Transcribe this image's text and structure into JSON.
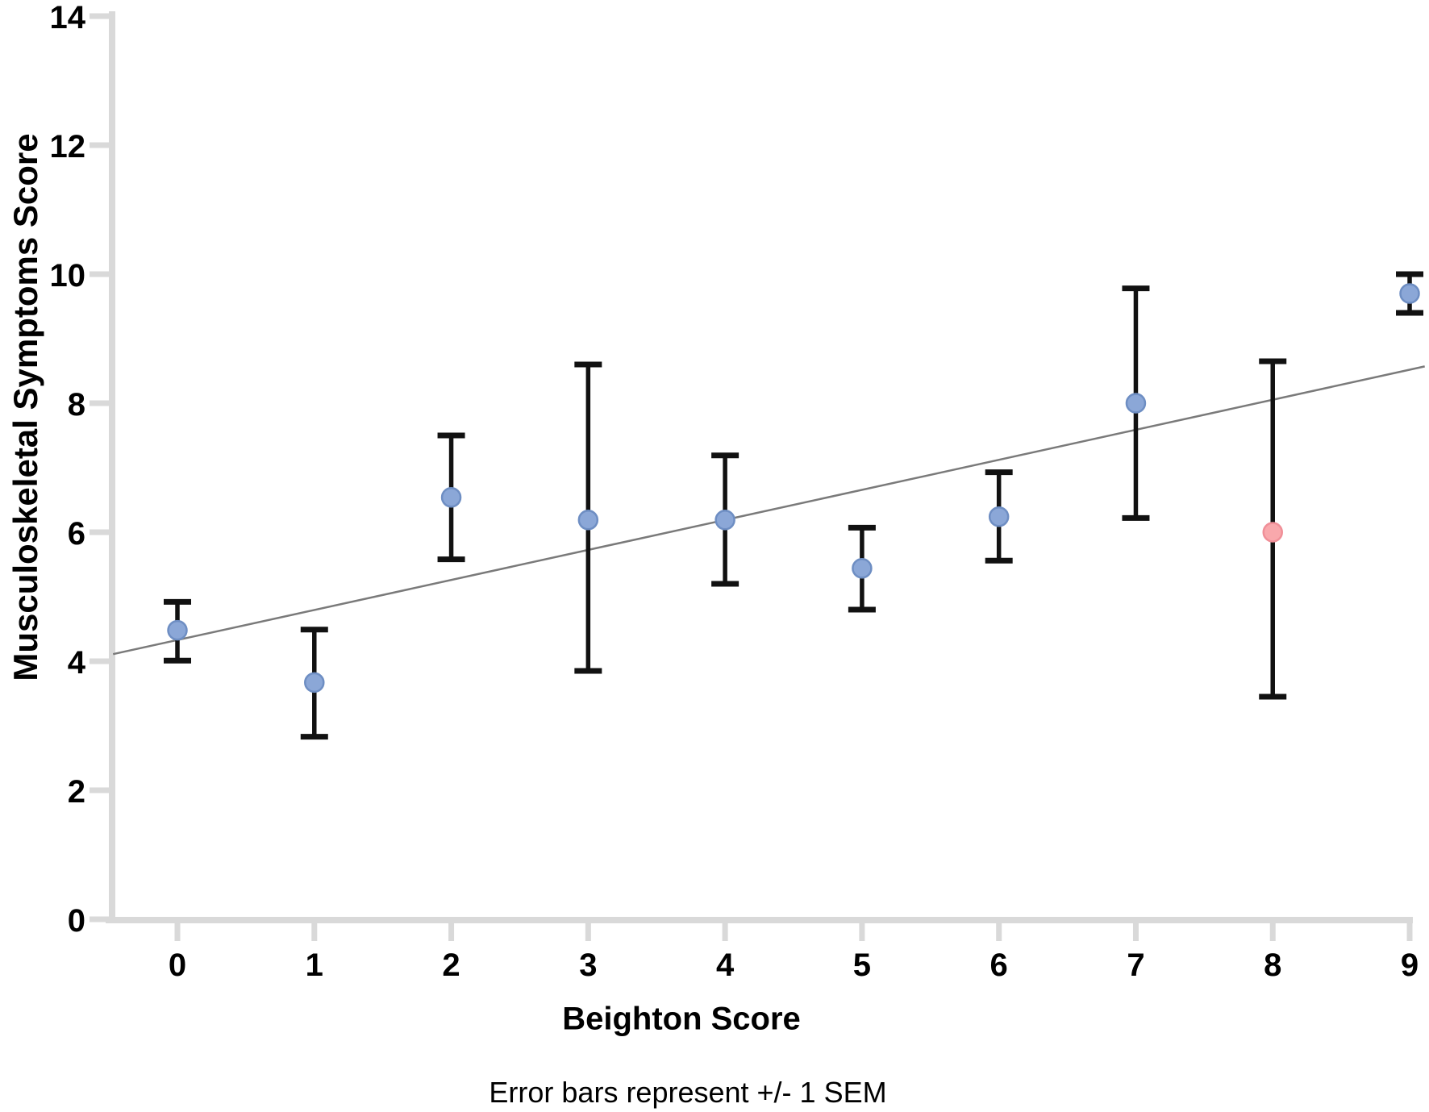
{
  "figure": {
    "y_axis_title": "Musculoskeletal Symptoms Score",
    "x_axis_title": "Beighton Score",
    "caption": "Error bars represent +/- 1 SEM"
  },
  "chart_data": {
    "type": "scatter",
    "title": "",
    "xlabel": "Beighton Score",
    "ylabel": "Musculoskeletal Symptoms Score",
    "caption": "Error bars represent +/- 1 SEM",
    "xlim": [
      -0.5,
      9.15
    ],
    "ylim": [
      0,
      14
    ],
    "x_ticks": [
      0,
      1,
      2,
      3,
      4,
      5,
      6,
      7,
      8,
      9
    ],
    "y_ticks": [
      0,
      2,
      4,
      6,
      8,
      10,
      12,
      14
    ],
    "grid": false,
    "legend": "none",
    "error_bar_meaning": "+/- 1 SEM",
    "series": [
      {
        "name": "mean-musculoskeletal-symptoms-score",
        "marker": "circle",
        "points": [
          {
            "x": 0,
            "y": 4.48,
            "err_low": 4.01,
            "err_high": 4.92,
            "color": "blue"
          },
          {
            "x": 1,
            "y": 3.67,
            "err_low": 2.83,
            "err_high": 4.49,
            "color": "blue"
          },
          {
            "x": 2,
            "y": 6.54,
            "err_low": 5.58,
            "err_high": 7.5,
            "color": "blue"
          },
          {
            "x": 3,
            "y": 6.19,
            "err_low": 3.85,
            "err_high": 8.6,
            "color": "blue"
          },
          {
            "x": 4,
            "y": 6.19,
            "err_low": 5.2,
            "err_high": 7.19,
            "color": "blue"
          },
          {
            "x": 5,
            "y": 5.44,
            "err_low": 4.8,
            "err_high": 6.07,
            "color": "blue"
          },
          {
            "x": 6,
            "y": 6.24,
            "err_low": 5.56,
            "err_high": 6.93,
            "color": "blue"
          },
          {
            "x": 7,
            "y": 8.0,
            "err_low": 6.22,
            "err_high": 9.78,
            "color": "blue"
          },
          {
            "x": 8,
            "y": 6.0,
            "err_low": 3.45,
            "err_high": 8.65,
            "color": "pink"
          },
          {
            "x": 9,
            "y": 9.7,
            "err_low": 9.4,
            "err_high": 10.0,
            "color": "blue"
          }
        ]
      }
    ],
    "trend_line": {
      "x_start": -0.47,
      "y_start": 4.11,
      "x_end": 9.11,
      "y_end": 8.57
    },
    "colors": {
      "axis": "#D9D9D9",
      "error_bar": "#111111",
      "point_blue": "#8BA7D7",
      "point_blue_edge": "#6E8EC3",
      "point_pink": "#F9A8AC",
      "point_pink_edge": "#F08F98",
      "trend": "#7A7A7A",
      "text": "#000000"
    }
  }
}
